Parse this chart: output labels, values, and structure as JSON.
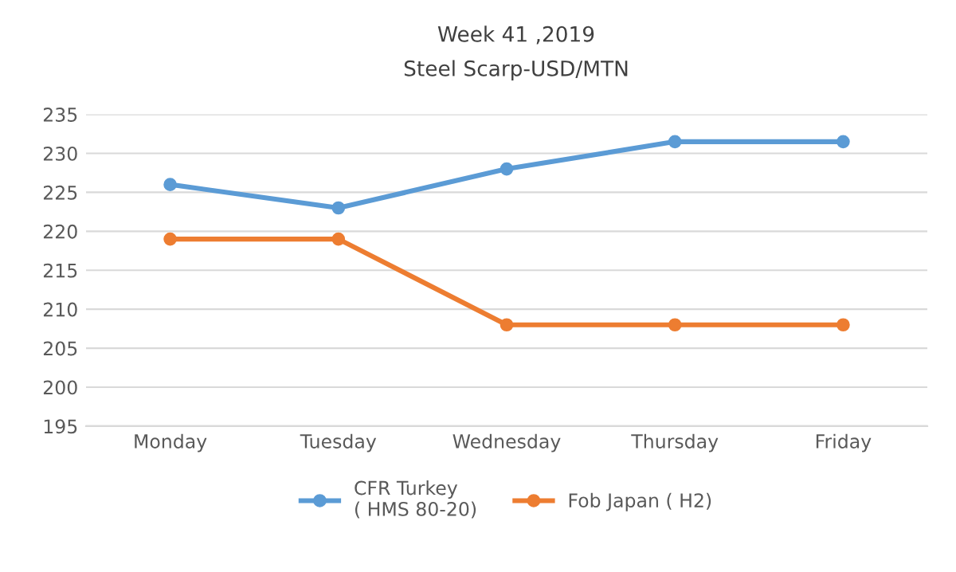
{
  "chart_data": {
    "type": "line",
    "title": "Week 41 ,2019",
    "subtitle": "Steel Scarp-USD/MTN",
    "categories": [
      "Monday",
      "Tuesday",
      "Wednesday",
      "Thursday",
      "Friday"
    ],
    "series": [
      {
        "name": "CFR Turkey\n( HMS 80-20)",
        "color": "#5b9bd5",
        "values": [
          226,
          223,
          228,
          231.5,
          231.5
        ]
      },
      {
        "name": "Fob Japan ( H2)",
        "color": "#ed7d31",
        "values": [
          219,
          219,
          208,
          208,
          208
        ]
      }
    ],
    "ylim": [
      195,
      235
    ],
    "yticks": [
      195,
      200,
      205,
      210,
      215,
      220,
      225,
      230,
      235
    ],
    "grid": "y",
    "legend": "bottom",
    "marker": "circle",
    "line_style": "solid"
  }
}
